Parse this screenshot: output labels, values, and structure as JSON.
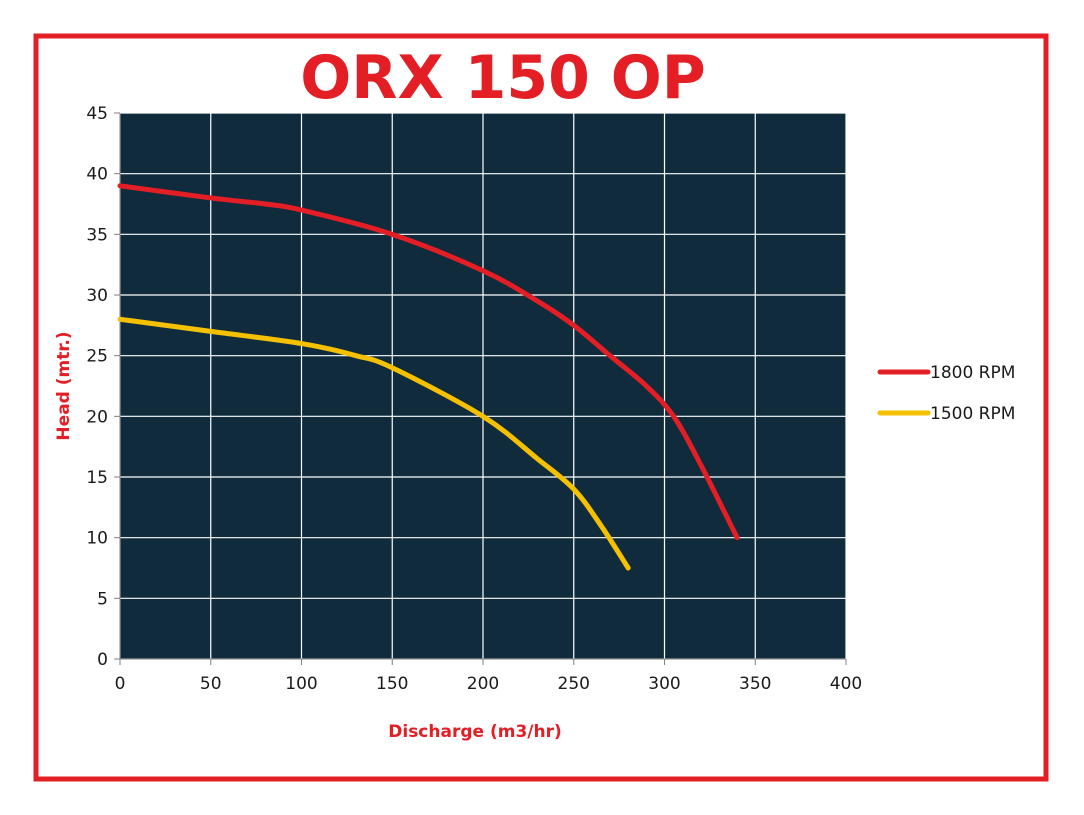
{
  "chart_data": {
    "type": "line",
    "title": "ORX 150 OP",
    "xlabel": "Discharge (m3/hr)",
    "ylabel": "Head (mtr.)",
    "xlim": [
      0,
      400
    ],
    "ylim": [
      0,
      45
    ],
    "x_ticks": [
      "0",
      "50",
      "100",
      "150",
      "200",
      "250",
      "300",
      "350",
      "400"
    ],
    "y_ticks": [
      "0",
      "5",
      "10",
      "15",
      "20",
      "25",
      "30",
      "35",
      "40",
      "45"
    ],
    "grid": true,
    "legend_position": "right",
    "colors": {
      "title": "#e31e24",
      "axis_title": "#e31e24",
      "frame": "#e31e24",
      "plot_background": "#0f2b3c",
      "grid": "#ffffff"
    },
    "series": [
      {
        "name": "1800 RPM",
        "color": "#e31e24",
        "x": [
          0,
          50,
          80,
          100,
          150,
          200,
          230,
          250,
          270,
          290,
          305,
          320,
          340
        ],
        "y": [
          39,
          38,
          37.5,
          37,
          35,
          32,
          29.5,
          27.5,
          25,
          22.5,
          20,
          16,
          10
        ]
      },
      {
        "name": "1500 RPM",
        "color": "#f5c000",
        "x": [
          0,
          50,
          100,
          130,
          150,
          200,
          230,
          250,
          265,
          280
        ],
        "y": [
          28,
          27,
          26,
          25,
          24,
          20,
          16.5,
          14,
          11,
          7.5
        ]
      }
    ]
  }
}
